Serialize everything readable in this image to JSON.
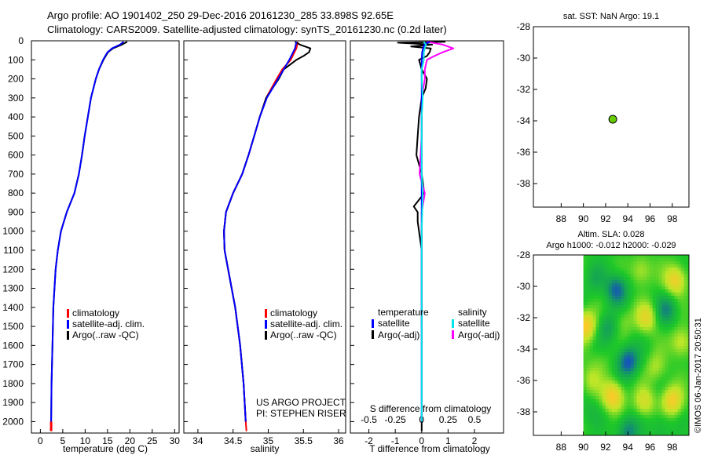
{
  "header": {
    "line1": "Argo profile: AO 1901402_250 29-Dec-2016 20161230_285 33.898S 92.65E",
    "line2": "Climatology: CARS2009. Satellite-adjusted climatology: synTS_20161230.nc (0.2d later)"
  },
  "sst_title": "sat. SST: NaN Argo: 19.1",
  "sla_title1": "Altim. SLA: 0.028",
  "sla_title2": "Argo h1000: -0.012 h2000: -0.029",
  "credit": "©IMOS 06-Jan-2017 20:50:31",
  "project_line1": "US ARGO PROJECT",
  "project_line2": "PI: STEPHEN RISER",
  "colors": {
    "climatology": "#ff0000",
    "satellite": "#0000ff",
    "argo": "#000000",
    "sal_satellite": "#00e5e5",
    "sal_argo": "#ff00ff",
    "dot": "#66cc00"
  },
  "chart_data": [
    {
      "type": "line",
      "name": "temperature-profile",
      "xlabel": "temperature (deg C)",
      "ylabel": "",
      "xlim": [
        -2,
        31
      ],
      "ylim": [
        2060,
        0
      ],
      "xticks": [
        0,
        5,
        10,
        15,
        20,
        25,
        30
      ],
      "yticks": [
        0,
        100,
        200,
        300,
        400,
        500,
        600,
        700,
        800,
        900,
        1000,
        1100,
        1200,
        1300,
        1400,
        1500,
        1600,
        1700,
        1800,
        1900,
        2000
      ],
      "legend": [
        "climatology",
        "satellite-adj. clim.",
        "Argo(..raw -QC)"
      ],
      "legend_position": "lower-center",
      "series": [
        {
          "name": "climatology",
          "depth": [
            2000,
            2050
          ],
          "values": [
            2.4,
            2.4
          ]
        },
        {
          "name": "Argo(..raw -QC)",
          "depth": [
            5,
            20,
            40,
            60,
            100,
            150,
            200,
            300,
            400,
            500,
            600,
            700,
            800,
            900,
            1000,
            1100,
            1200,
            1400,
            1600,
            1800,
            2000
          ],
          "values": [
            19.4,
            18.2,
            16.2,
            15.1,
            14.1,
            13.1,
            12.4,
            11.3,
            10.6,
            9.9,
            9.3,
            8.6,
            7.6,
            5.9,
            4.6,
            3.9,
            3.4,
            2.9,
            2.7,
            2.5,
            2.4
          ]
        },
        {
          "name": "satellite-adj. clim.",
          "depth": [
            5,
            20,
            40,
            60,
            100,
            150,
            200,
            300,
            400,
            500,
            600,
            700,
            800,
            900,
            1000,
            1100,
            1200,
            1400,
            1600,
            1800,
            2000
          ],
          "values": [
            18.6,
            17.8,
            16.0,
            15.0,
            14.0,
            13.1,
            12.4,
            11.3,
            10.6,
            9.9,
            9.3,
            8.6,
            7.6,
            5.9,
            4.6,
            3.9,
            3.4,
            2.9,
            2.7,
            2.5,
            2.4
          ]
        }
      ]
    },
    {
      "type": "line",
      "name": "salinity-profile",
      "xlabel": "salinity",
      "ylabel": "",
      "xlim": [
        33.8,
        36.1
      ],
      "ylim": [
        2060,
        0
      ],
      "xticks": [
        34,
        34.5,
        35,
        35.5,
        36
      ],
      "legend": [
        "climatology",
        "satellite-adj. clim.",
        "Argo(..raw -QC)"
      ],
      "legend_position": "lower-center",
      "series": [
        {
          "name": "climatology",
          "depth": [
            5,
            40,
            100,
            150,
            200,
            300,
            400,
            500,
            600,
            700,
            800,
            900,
            1000,
            1100,
            1200,
            1400,
            1600,
            1800,
            2000,
            2050
          ],
          "values": [
            35.42,
            35.4,
            35.32,
            35.2,
            35.12,
            34.97,
            34.88,
            34.8,
            34.72,
            34.63,
            34.5,
            34.4,
            34.37,
            34.38,
            34.43,
            34.53,
            34.6,
            34.65,
            34.68,
            34.69
          ]
        },
        {
          "name": "Argo(..raw -QC)",
          "depth": [
            5,
            20,
            40,
            60,
            80,
            100,
            150,
            200,
            300,
            400,
            500,
            600,
            700,
            800,
            900,
            1000,
            1100,
            1200,
            1400,
            1600,
            1800,
            2000
          ],
          "values": [
            35.38,
            35.45,
            35.6,
            35.58,
            35.5,
            35.4,
            35.22,
            35.15,
            34.97,
            34.88,
            34.8,
            34.72,
            34.63,
            34.5,
            34.4,
            34.37,
            34.38,
            34.43,
            34.53,
            34.6,
            34.65,
            34.68
          ]
        },
        {
          "name": "satellite-adj. clim.",
          "depth": [
            5,
            40,
            100,
            150,
            200,
            300,
            400,
            500,
            600,
            700,
            800,
            900,
            1000,
            1100,
            1200,
            1400,
            1600,
            1800,
            2000
          ],
          "values": [
            35.4,
            35.38,
            35.3,
            35.22,
            35.14,
            34.98,
            34.88,
            34.8,
            34.72,
            34.63,
            34.5,
            34.4,
            34.37,
            34.38,
            34.43,
            34.53,
            34.6,
            34.65,
            34.68
          ]
        }
      ]
    },
    {
      "type": "line",
      "name": "difference-profile",
      "xlabel": "T difference from climatology",
      "top_xlabel": "S difference from climatology",
      "xlim": [
        -2.7,
        3.1
      ],
      "ylim": [
        2060,
        0
      ],
      "xticks": [
        -2,
        -1,
        0,
        1,
        2
      ],
      "top_ticks": [
        -0.5,
        -0.25,
        0,
        0.25,
        0.5
      ],
      "top_tick_labels": [
        "-0.5",
        "-0.25",
        "0",
        "0.25",
        "0.5"
      ],
      "legend_headers": [
        "temperature",
        "salinity"
      ],
      "legend": [
        "satellite",
        "Argo(-adj)",
        "satellite",
        "Argo(-adj)"
      ],
      "legend_position": "lower-center",
      "series": [
        {
          "name": "temperature satellite",
          "depth": [
            5,
            20,
            40,
            60,
            100,
            200,
            300,
            500,
            800,
            1000,
            1500,
            2000
          ],
          "values": [
            0.3,
            0.1,
            0.05,
            0.02,
            0.0,
            0.0,
            0.0,
            0.0,
            0.0,
            0.0,
            0.0,
            0.0
          ]
        },
        {
          "name": "temperature Argo(-adj)",
          "depth": [
            5,
            10,
            20,
            30,
            40,
            60,
            80,
            100,
            150,
            200,
            250,
            300,
            400,
            500,
            600,
            700,
            800,
            870,
            900,
            950,
            1000,
            1100,
            1500
          ],
          "values": [
            0.9,
            -0.9,
            0.4,
            -0.4,
            0.35,
            0.3,
            0.2,
            -0.1,
            0.0,
            0.2,
            0.15,
            0.0,
            -0.1,
            -0.15,
            -0.2,
            0.0,
            0.1,
            -0.3,
            -0.15,
            -0.15,
            -0.1,
            0.0,
            0.0
          ]
        },
        {
          "name": "salinity satellite",
          "depth": [
            5,
            20,
            40,
            60,
            100,
            150,
            200,
            300,
            400,
            500,
            600,
            700,
            800,
            1000,
            1500,
            2000
          ],
          "values": [
            0.02,
            0.04,
            0.03,
            0.02,
            0.02,
            0.0,
            0.0,
            0.01,
            0.0,
            0.0,
            0.0,
            0.0,
            0.01,
            0.0,
            0.0,
            0.0
          ]
        },
        {
          "name": "salinity Argo(-adj)",
          "depth": [
            5,
            20,
            40,
            60,
            80,
            100,
            150,
            200,
            300,
            500,
            700,
            800,
            900,
            1000,
            1500,
            2000
          ],
          "values": [
            0.05,
            0.2,
            0.3,
            0.2,
            0.12,
            0.05,
            0.03,
            0.03,
            0.0,
            0.0,
            -0.02,
            0.03,
            0.0,
            0.0,
            0.0,
            0.0
          ]
        },
        {
          "name": "temperature Argo(-adj) marker",
          "depth": [
            1950,
            2050
          ],
          "values": [
            0.0,
            0.0
          ]
        }
      ]
    },
    {
      "type": "scatter",
      "name": "sst-map",
      "title": "sat. SST: NaN Argo: 19.1",
      "xlim": [
        85.5,
        99.5
      ],
      "ylim": [
        -39.5,
        -28
      ],
      "xticks": [
        88,
        90,
        92,
        94,
        96,
        98
      ],
      "yticks": [
        -28,
        -30,
        -32,
        -34,
        -36,
        -38
      ],
      "x": [
        92.65
      ],
      "y": [
        -33.898
      ]
    },
    {
      "type": "heatmap",
      "name": "sla-map",
      "title": "Altim. SLA: 0.028",
      "xlim": [
        85.5,
        99.5
      ],
      "ylim": [
        -39.5,
        -28
      ],
      "xticks": [
        88,
        90,
        92,
        94,
        96,
        98
      ],
      "yticks": [
        -28,
        -30,
        -32,
        -34,
        -36,
        -38
      ],
      "data_lon_range": [
        90,
        99.5
      ],
      "blobs": [
        {
          "lon": 91.0,
          "lat": -29.5,
          "v": -0.3
        },
        {
          "lon": 93.0,
          "lat": -30.2,
          "v": -0.9
        },
        {
          "lon": 95.2,
          "lat": -29.0,
          "v": 0.5
        },
        {
          "lon": 98.3,
          "lat": -29.6,
          "v": 0.9
        },
        {
          "lon": 90.2,
          "lat": -32.5,
          "v": 1.0
        },
        {
          "lon": 92.2,
          "lat": -32.6,
          "v": -0.5
        },
        {
          "lon": 95.7,
          "lat": -32.0,
          "v": 0.7
        },
        {
          "lon": 97.5,
          "lat": -31.5,
          "v": -0.6
        },
        {
          "lon": 98.8,
          "lat": -33.6,
          "v": 0.6
        },
        {
          "lon": 91.5,
          "lat": -34.8,
          "v": 0.2
        },
        {
          "lon": 94.0,
          "lat": -34.8,
          "v": -1.0
        },
        {
          "lon": 96.5,
          "lat": -35.2,
          "v": 0.4
        },
        {
          "lon": 92.7,
          "lat": -37.0,
          "v": 1.0
        },
        {
          "lon": 95.5,
          "lat": -37.4,
          "v": 0.6
        },
        {
          "lon": 98.0,
          "lat": -37.3,
          "v": 0.9
        },
        {
          "lon": 90.5,
          "lat": -38.0,
          "v": -0.2
        },
        {
          "lon": 94.0,
          "lat": -39.2,
          "v": -0.7
        },
        {
          "lon": 90.6,
          "lat": -36.0,
          "v": 0.4
        },
        {
          "lon": 97.0,
          "lat": -38.9,
          "v": -0.3
        },
        {
          "lon": 93.6,
          "lat": -32.2,
          "v": 0.3
        }
      ]
    }
  ]
}
